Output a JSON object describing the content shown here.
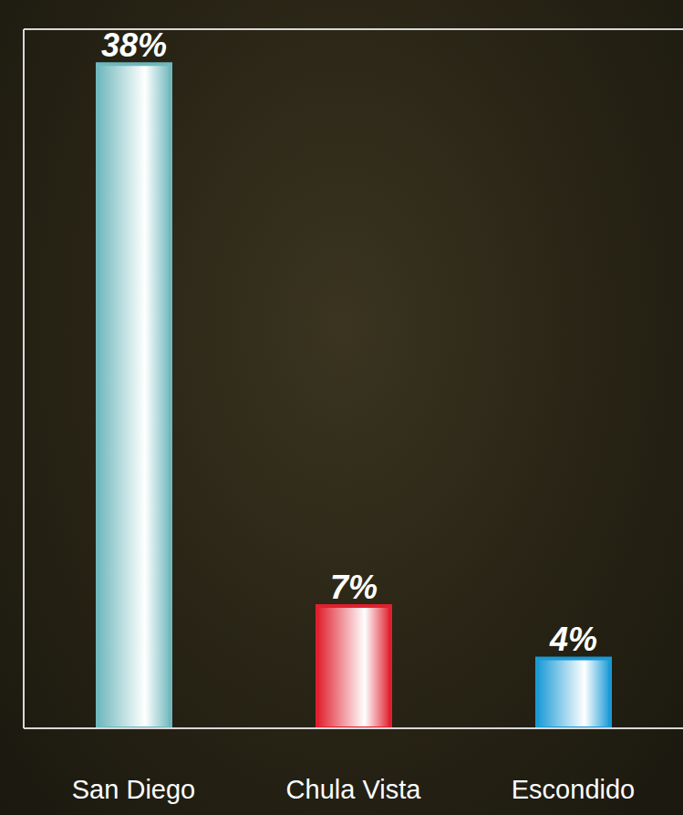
{
  "chart_data": {
    "type": "bar",
    "categories": [
      "San Diego",
      "Chula Vista",
      "Escondido"
    ],
    "values": [
      38,
      7,
      4
    ],
    "value_labels": [
      "38%",
      "7%",
      "4%"
    ],
    "colors": [
      "#6fb8bd",
      "#e0202e",
      "#1a9ad6"
    ],
    "ylim": [
      0,
      40
    ],
    "yticks": [
      0,
      5,
      10,
      15,
      20,
      25,
      30,
      35
    ],
    "grid": true,
    "data_labels": true,
    "tick_labels": "x"
  }
}
